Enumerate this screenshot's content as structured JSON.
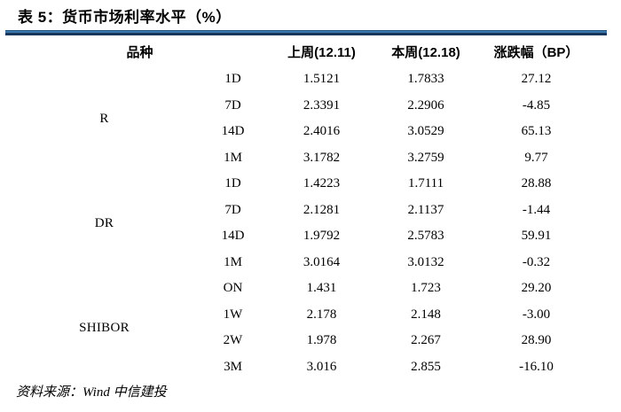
{
  "title": "表 5：货币市场利率水平（%）",
  "source_note": "资料来源：Wind 中信建投",
  "colors": {
    "rule_dark": "#16365c",
    "rule_light": "#3d7ab2",
    "text": "#000000",
    "background": "#ffffff"
  },
  "table": {
    "headers": {
      "category": "品种",
      "last_week": "上周(12.11)",
      "this_week": "本周(12.18)",
      "change": "涨跌幅（BP）"
    },
    "groups": [
      {
        "name": "R",
        "rows": [
          {
            "tenor": "1D",
            "last_week": "1.5121",
            "this_week": "1.7833",
            "change": "27.12"
          },
          {
            "tenor": "7D",
            "last_week": "2.3391",
            "this_week": "2.2906",
            "change": "-4.85"
          },
          {
            "tenor": "14D",
            "last_week": "2.4016",
            "this_week": "3.0529",
            "change": "65.13"
          },
          {
            "tenor": "1M",
            "last_week": "3.1782",
            "this_week": "3.2759",
            "change": "9.77"
          }
        ]
      },
      {
        "name": "DR",
        "rows": [
          {
            "tenor": "1D",
            "last_week": "1.4223",
            "this_week": "1.7111",
            "change": "28.88"
          },
          {
            "tenor": "7D",
            "last_week": "2.1281",
            "this_week": "2.1137",
            "change": "-1.44"
          },
          {
            "tenor": "14D",
            "last_week": "1.9792",
            "this_week": "2.5783",
            "change": "59.91"
          },
          {
            "tenor": "1M",
            "last_week": "3.0164",
            "this_week": "3.0132",
            "change": "-0.32"
          }
        ]
      },
      {
        "name": "SHIBOR",
        "rows": [
          {
            "tenor": "ON",
            "last_week": "1.431",
            "this_week": "1.723",
            "change": "29.20"
          },
          {
            "tenor": "1W",
            "last_week": "2.178",
            "this_week": "2.148",
            "change": "-3.00"
          },
          {
            "tenor": "2W",
            "last_week": "1.978",
            "this_week": "2.267",
            "change": "28.90"
          },
          {
            "tenor": "3M",
            "last_week": "3.016",
            "this_week": "2.855",
            "change": "-16.10"
          }
        ]
      }
    ]
  }
}
